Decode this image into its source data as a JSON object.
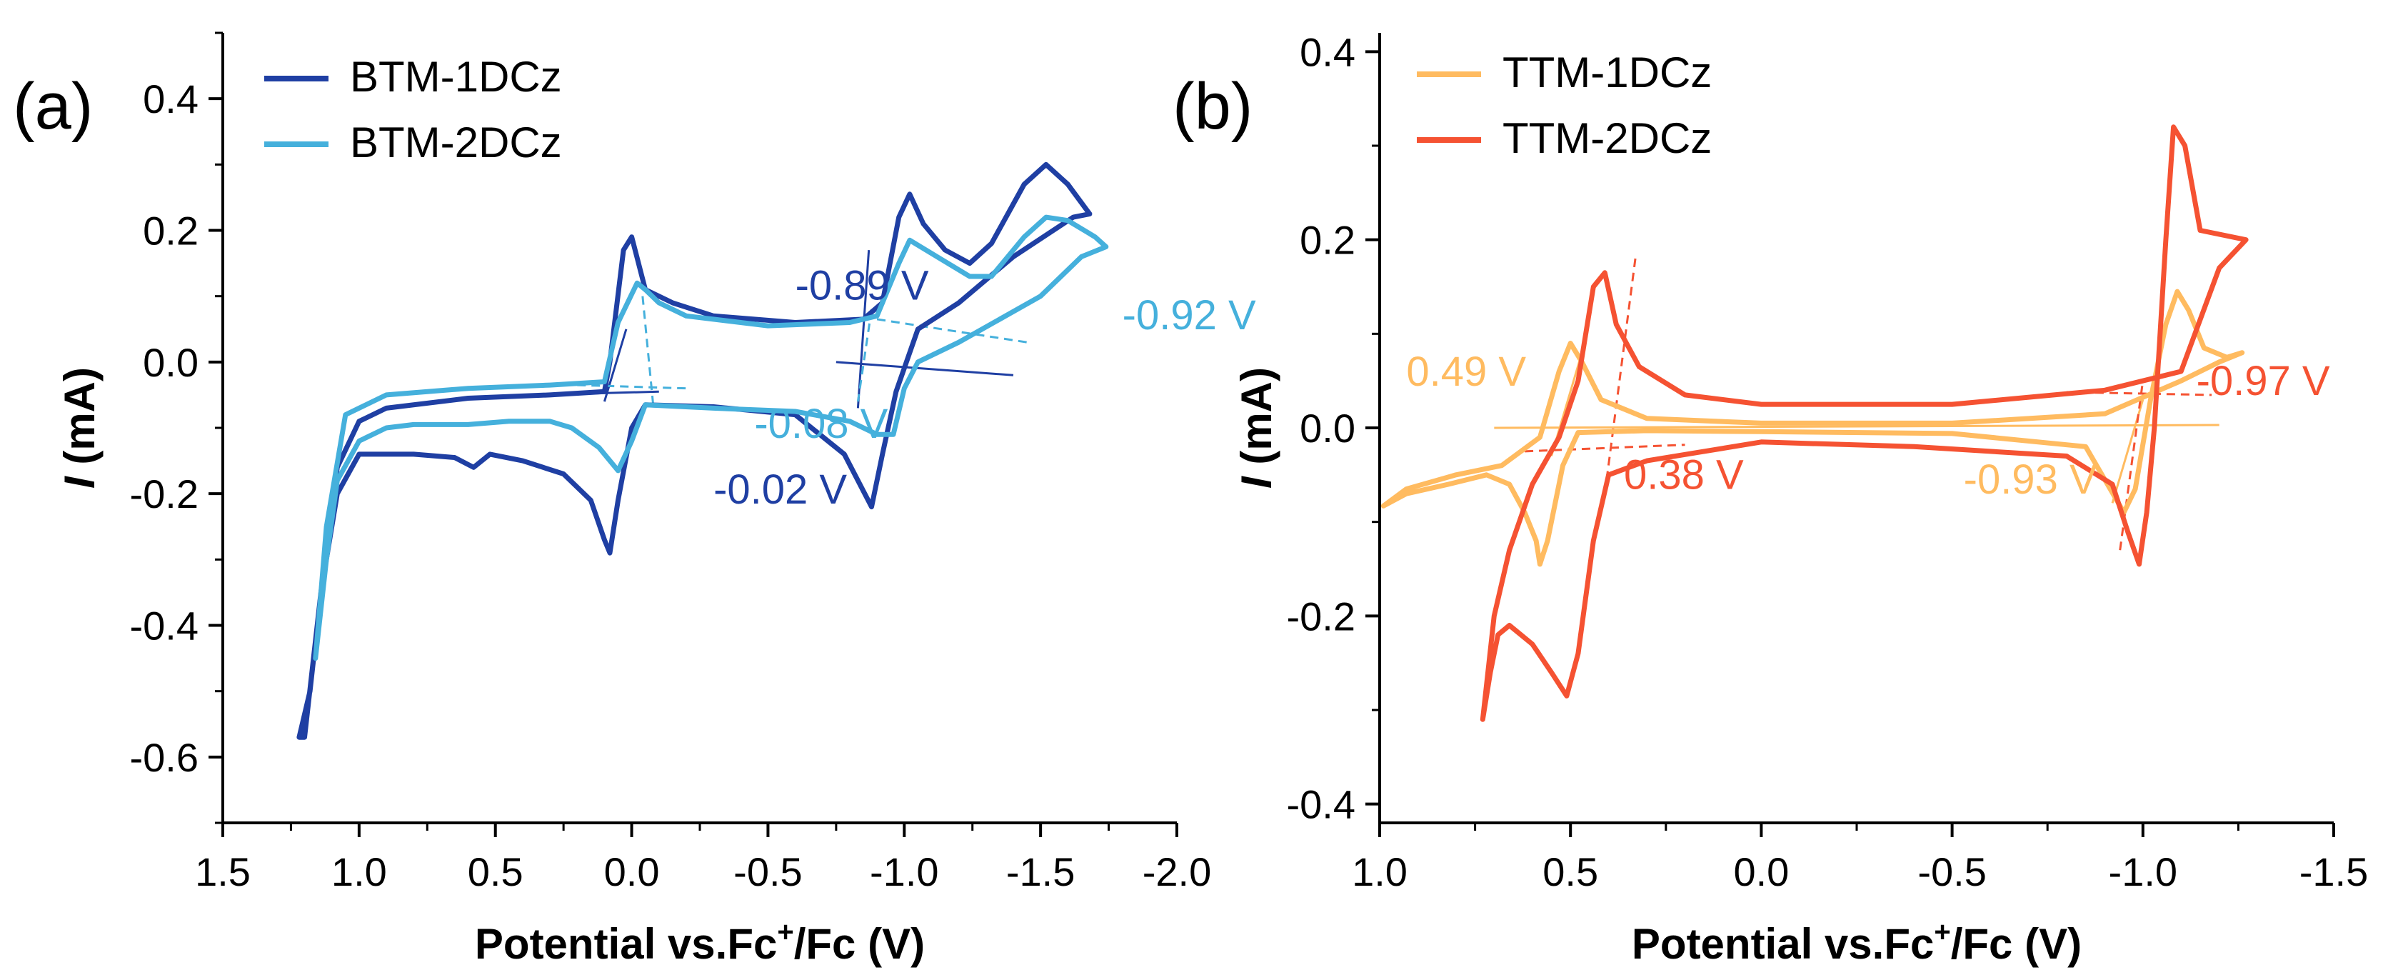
{
  "chart_data": [
    {
      "type": "line",
      "panel_label": "(a)",
      "xlabel": {
        "prefix": "Potential vs.Fc",
        "sup": "+",
        "suffix": "/Fc (V)"
      },
      "ylabel": {
        "italic": "I",
        "rest": " (mA)"
      },
      "xlim": [
        1.5,
        -2.0
      ],
      "ylim": [
        -0.7,
        0.5
      ],
      "x_ticks": [
        1.5,
        1.0,
        0.5,
        0.0,
        -0.5,
        -1.0,
        -1.5,
        -2.0
      ],
      "x_tick_labels": [
        "1.5",
        "1.0",
        "0.5",
        "0.0",
        "-0.5",
        "-1.0",
        "-1.5",
        "-2.0"
      ],
      "y_ticks": [
        0.4,
        0.2,
        0.0,
        -0.2,
        -0.4,
        -0.6
      ],
      "y_tick_labels": [
        "0.4",
        "0.2",
        "0.0",
        "-0.2",
        "-0.4",
        "-0.6"
      ],
      "series": [
        {
          "name": "BTM-1DCz",
          "color": "#1f3fa3",
          "points": [
            [
              1.0,
              -0.14
            ],
            [
              0.8,
              -0.14
            ],
            [
              0.65,
              -0.145
            ],
            [
              0.58,
              -0.16
            ],
            [
              0.52,
              -0.14
            ],
            [
              0.4,
              -0.15
            ],
            [
              0.25,
              -0.17
            ],
            [
              0.15,
              -0.21
            ],
            [
              0.1,
              -0.27
            ],
            [
              0.08,
              -0.29
            ],
            [
              0.05,
              -0.21
            ],
            [
              0.0,
              -0.1
            ],
            [
              -0.05,
              -0.065
            ],
            [
              -0.3,
              -0.068
            ],
            [
              -0.6,
              -0.08
            ],
            [
              -0.78,
              -0.14
            ],
            [
              -0.88,
              -0.22
            ],
            [
              -0.92,
              -0.14
            ],
            [
              -0.97,
              -0.045
            ],
            [
              -1.05,
              0.05
            ],
            [
              -1.2,
              0.09
            ],
            [
              -1.4,
              0.16
            ],
            [
              -1.62,
              0.22
            ],
            [
              -1.68,
              0.225
            ],
            [
              -1.6,
              0.27
            ],
            [
              -1.52,
              0.3
            ],
            [
              -1.44,
              0.27
            ],
            [
              -1.32,
              0.18
            ],
            [
              -1.24,
              0.15
            ],
            [
              -1.15,
              0.17
            ],
            [
              -1.07,
              0.21
            ],
            [
              -1.02,
              0.255
            ],
            [
              -0.98,
              0.22
            ],
            [
              -0.92,
              0.09
            ],
            [
              -0.85,
              0.065
            ],
            [
              -0.6,
              0.06
            ],
            [
              -0.3,
              0.07
            ],
            [
              -0.15,
              0.09
            ],
            [
              -0.05,
              0.11
            ],
            [
              0.0,
              0.19
            ],
            [
              0.03,
              0.17
            ],
            [
              0.08,
              0.0
            ],
            [
              0.1,
              -0.045
            ],
            [
              0.3,
              -0.05
            ],
            [
              0.6,
              -0.055
            ],
            [
              0.9,
              -0.07
            ],
            [
              1.0,
              -0.09
            ],
            [
              1.08,
              -0.16
            ],
            [
              1.14,
              -0.35
            ],
            [
              1.2,
              -0.57
            ],
            [
              1.22,
              -0.57
            ],
            [
              1.18,
              -0.5
            ],
            [
              1.14,
              -0.35
            ],
            [
              1.08,
              -0.2
            ],
            [
              1.0,
              -0.14
            ]
          ]
        },
        {
          "name": "BTM-2DCz",
          "color": "#45b0dc",
          "points": [
            [
              1.16,
              -0.45
            ],
            [
              1.12,
              -0.3
            ],
            [
              1.08,
              -0.18
            ],
            [
              1.0,
              -0.12
            ],
            [
              0.9,
              -0.1
            ],
            [
              0.8,
              -0.095
            ],
            [
              0.6,
              -0.095
            ],
            [
              0.45,
              -0.09
            ],
            [
              0.3,
              -0.09
            ],
            [
              0.22,
              -0.1
            ],
            [
              0.12,
              -0.13
            ],
            [
              0.05,
              -0.165
            ],
            [
              0.0,
              -0.12
            ],
            [
              -0.05,
              -0.065
            ],
            [
              -0.3,
              -0.07
            ],
            [
              -0.6,
              -0.075
            ],
            [
              -0.8,
              -0.09
            ],
            [
              -0.9,
              -0.11
            ],
            [
              -0.96,
              -0.11
            ],
            [
              -1.0,
              -0.04
            ],
            [
              -1.05,
              0.0
            ],
            [
              -1.2,
              0.03
            ],
            [
              -1.5,
              0.1
            ],
            [
              -1.65,
              0.16
            ],
            [
              -1.74,
              0.175
            ],
            [
              -1.7,
              0.19
            ],
            [
              -1.6,
              0.215
            ],
            [
              -1.52,
              0.22
            ],
            [
              -1.44,
              0.19
            ],
            [
              -1.32,
              0.13
            ],
            [
              -1.24,
              0.13
            ],
            [
              -1.12,
              0.16
            ],
            [
              -1.02,
              0.185
            ],
            [
              -0.98,
              0.15
            ],
            [
              -0.9,
              0.07
            ],
            [
              -0.8,
              0.06
            ],
            [
              -0.5,
              0.055
            ],
            [
              -0.2,
              0.07
            ],
            [
              -0.1,
              0.09
            ],
            [
              -0.05,
              0.11
            ],
            [
              -0.02,
              0.12
            ],
            [
              0.05,
              0.06
            ],
            [
              0.1,
              -0.03
            ],
            [
              0.3,
              -0.035
            ],
            [
              0.6,
              -0.04
            ],
            [
              0.9,
              -0.05
            ],
            [
              1.05,
              -0.08
            ],
            [
              1.12,
              -0.25
            ],
            [
              1.16,
              -0.45
            ]
          ]
        }
      ],
      "annotations": [
        {
          "text": "-0.89 V",
          "x": -0.6,
          "y": 0.095,
          "color": "#1f3fa3"
        },
        {
          "text": "-0.92 V",
          "x": -1.8,
          "y": 0.05,
          "color": "#45b0dc"
        },
        {
          "text": "-0.08 V",
          "x": -0.45,
          "y": -0.115,
          "color": "#45b0dc"
        },
        {
          "text": "-0.02 V",
          "x": -0.3,
          "y": -0.215,
          "color": "#1f3fa3"
        }
      ],
      "guide_lines": [
        {
          "x1": 0.02,
          "y1": 0.05,
          "x2": 0.1,
          "y2": -0.06,
          "color": "#1f3fa3"
        },
        {
          "x1": 0.35,
          "y1": -0.05,
          "x2": -0.1,
          "y2": -0.045,
          "color": "#1f3fa3"
        },
        {
          "x1": -0.87,
          "y1": 0.17,
          "x2": -0.83,
          "y2": -0.07,
          "color": "#1f3fa3"
        },
        {
          "x1": -0.75,
          "y1": 0.0,
          "x2": -1.4,
          "y2": -0.02,
          "color": "#1f3fa3"
        },
        {
          "x1": -0.04,
          "y1": 0.1,
          "x2": -0.08,
          "y2": -0.07,
          "color": "#45b0dc",
          "dash": true
        },
        {
          "x1": 0.2,
          "y1": -0.035,
          "x2": -0.2,
          "y2": -0.04,
          "color": "#45b0dc",
          "dash": true
        },
        {
          "x1": -0.88,
          "y1": 0.08,
          "x2": -0.83,
          "y2": -0.06,
          "color": "#45b0dc",
          "dash": true
        },
        {
          "x1": -0.9,
          "y1": 0.065,
          "x2": -1.45,
          "y2": 0.03,
          "color": "#45b0dc",
          "dash": true
        }
      ]
    },
    {
      "type": "line",
      "panel_label": "(b)",
      "xlabel": {
        "prefix": "Potential vs.Fc",
        "sup": "+",
        "suffix": "/Fc (V)"
      },
      "ylabel": {
        "italic": "I",
        "rest": " (mA)"
      },
      "xlim": [
        1.0,
        -1.5
      ],
      "ylim": [
        -0.42,
        0.42
      ],
      "x_ticks": [
        1.0,
        0.5,
        0.0,
        -0.5,
        -1.0,
        -1.5
      ],
      "x_tick_labels": [
        "1.0",
        "0.5",
        "0.0",
        "-0.5",
        "-1.0",
        "-1.5"
      ],
      "y_ticks": [
        0.4,
        0.2,
        0.0,
        -0.2,
        -0.4
      ],
      "y_tick_labels": [
        "0.4",
        "0.2",
        "0.0",
        "-0.2",
        "-0.4"
      ],
      "series": [
        {
          "name": "TTM-1DCz",
          "color": "#ffbb60",
          "points": [
            [
              0.99,
              -0.083
            ],
            [
              0.93,
              -0.07
            ],
            [
              0.82,
              -0.06
            ],
            [
              0.72,
              -0.05
            ],
            [
              0.66,
              -0.06
            ],
            [
              0.62,
              -0.09
            ],
            [
              0.59,
              -0.12
            ],
            [
              0.58,
              -0.145
            ],
            [
              0.56,
              -0.12
            ],
            [
              0.52,
              -0.04
            ],
            [
              0.48,
              -0.005
            ],
            [
              0.3,
              -0.003
            ],
            [
              0.0,
              -0.004
            ],
            [
              -0.5,
              -0.006
            ],
            [
              -0.85,
              -0.02
            ],
            [
              -0.95,
              -0.09
            ],
            [
              -0.98,
              -0.065
            ],
            [
              -1.02,
              0.03
            ],
            [
              -1.06,
              0.11
            ],
            [
              -1.09,
              0.145
            ],
            [
              -1.12,
              0.125
            ],
            [
              -1.16,
              0.085
            ],
            [
              -1.22,
              0.075
            ],
            [
              -1.26,
              0.08
            ],
            [
              -1.2,
              0.07
            ],
            [
              -1.1,
              0.05
            ],
            [
              -0.9,
              0.015
            ],
            [
              -0.5,
              0.005
            ],
            [
              0.0,
              0.005
            ],
            [
              0.3,
              0.01
            ],
            [
              0.42,
              0.03
            ],
            [
              0.47,
              0.07
            ],
            [
              0.5,
              0.09
            ],
            [
              0.53,
              0.06
            ],
            [
              0.58,
              -0.01
            ],
            [
              0.68,
              -0.04
            ],
            [
              0.8,
              -0.05
            ],
            [
              0.93,
              -0.065
            ],
            [
              0.99,
              -0.083
            ]
          ]
        },
        {
          "name": "TTM-2DCz",
          "color": "#f55232",
          "points": [
            [
              0.73,
              -0.31
            ],
            [
              0.71,
              -0.26
            ],
            [
              0.69,
              -0.22
            ],
            [
              0.66,
              -0.21
            ],
            [
              0.6,
              -0.23
            ],
            [
              0.55,
              -0.26
            ],
            [
              0.51,
              -0.285
            ],
            [
              0.48,
              -0.24
            ],
            [
              0.44,
              -0.12
            ],
            [
              0.4,
              -0.05
            ],
            [
              0.3,
              -0.035
            ],
            [
              0.0,
              -0.015
            ],
            [
              -0.4,
              -0.02
            ],
            [
              -0.8,
              -0.03
            ],
            [
              -0.92,
              -0.06
            ],
            [
              -0.96,
              -0.11
            ],
            [
              -0.99,
              -0.145
            ],
            [
              -1.01,
              -0.09
            ],
            [
              -1.03,
              0.0
            ],
            [
              -1.06,
              0.2
            ],
            [
              -1.08,
              0.32
            ],
            [
              -1.11,
              0.3
            ],
            [
              -1.15,
              0.21
            ],
            [
              -1.27,
              0.2
            ],
            [
              -1.2,
              0.17
            ],
            [
              -1.1,
              0.06
            ],
            [
              -0.9,
              0.04
            ],
            [
              -0.5,
              0.025
            ],
            [
              0.0,
              0.025
            ],
            [
              0.2,
              0.035
            ],
            [
              0.32,
              0.065
            ],
            [
              0.38,
              0.11
            ],
            [
              0.41,
              0.165
            ],
            [
              0.44,
              0.15
            ],
            [
              0.48,
              0.05
            ],
            [
              0.53,
              -0.01
            ],
            [
              0.6,
              -0.06
            ],
            [
              0.66,
              -0.13
            ],
            [
              0.7,
              -0.2
            ],
            [
              0.73,
              -0.31
            ]
          ]
        }
      ],
      "annotations": [
        {
          "text": "0.49 V",
          "x": 0.93,
          "y": 0.045,
          "color": "#ffbb60"
        },
        {
          "text": "0.38 V",
          "x": 0.36,
          "y": -0.065,
          "color": "#f55232"
        },
        {
          "text": "-0.93 V",
          "x": -0.53,
          "y": -0.07,
          "color": "#ffbb60"
        },
        {
          "text": "-0.97 V",
          "x": -1.14,
          "y": 0.035,
          "color": "#f55232"
        }
      ],
      "guide_lines": [
        {
          "x1": 0.55,
          "y1": -0.03,
          "x2": 0.47,
          "y2": 0.08,
          "color": "#ffbb60"
        },
        {
          "x1": 0.7,
          "y1": 0.0,
          "x2": -1.2,
          "y2": 0.003,
          "color": "#ffbb60"
        },
        {
          "x1": -0.92,
          "y1": -0.08,
          "x2": -1.0,
          "y2": 0.03,
          "color": "#ffbb60"
        },
        {
          "x1": 0.33,
          "y1": 0.18,
          "x2": 0.41,
          "y2": -0.07,
          "color": "#f55232",
          "dash": true
        },
        {
          "x1": 0.62,
          "y1": -0.025,
          "x2": 0.2,
          "y2": -0.018,
          "color": "#f55232",
          "dash": true
        },
        {
          "x1": -0.94,
          "y1": -0.13,
          "x2": -1.0,
          "y2": 0.05,
          "color": "#f55232",
          "dash": true
        },
        {
          "x1": -0.8,
          "y1": 0.038,
          "x2": -1.18,
          "y2": 0.035,
          "color": "#f55232",
          "dash": true
        }
      ]
    }
  ]
}
